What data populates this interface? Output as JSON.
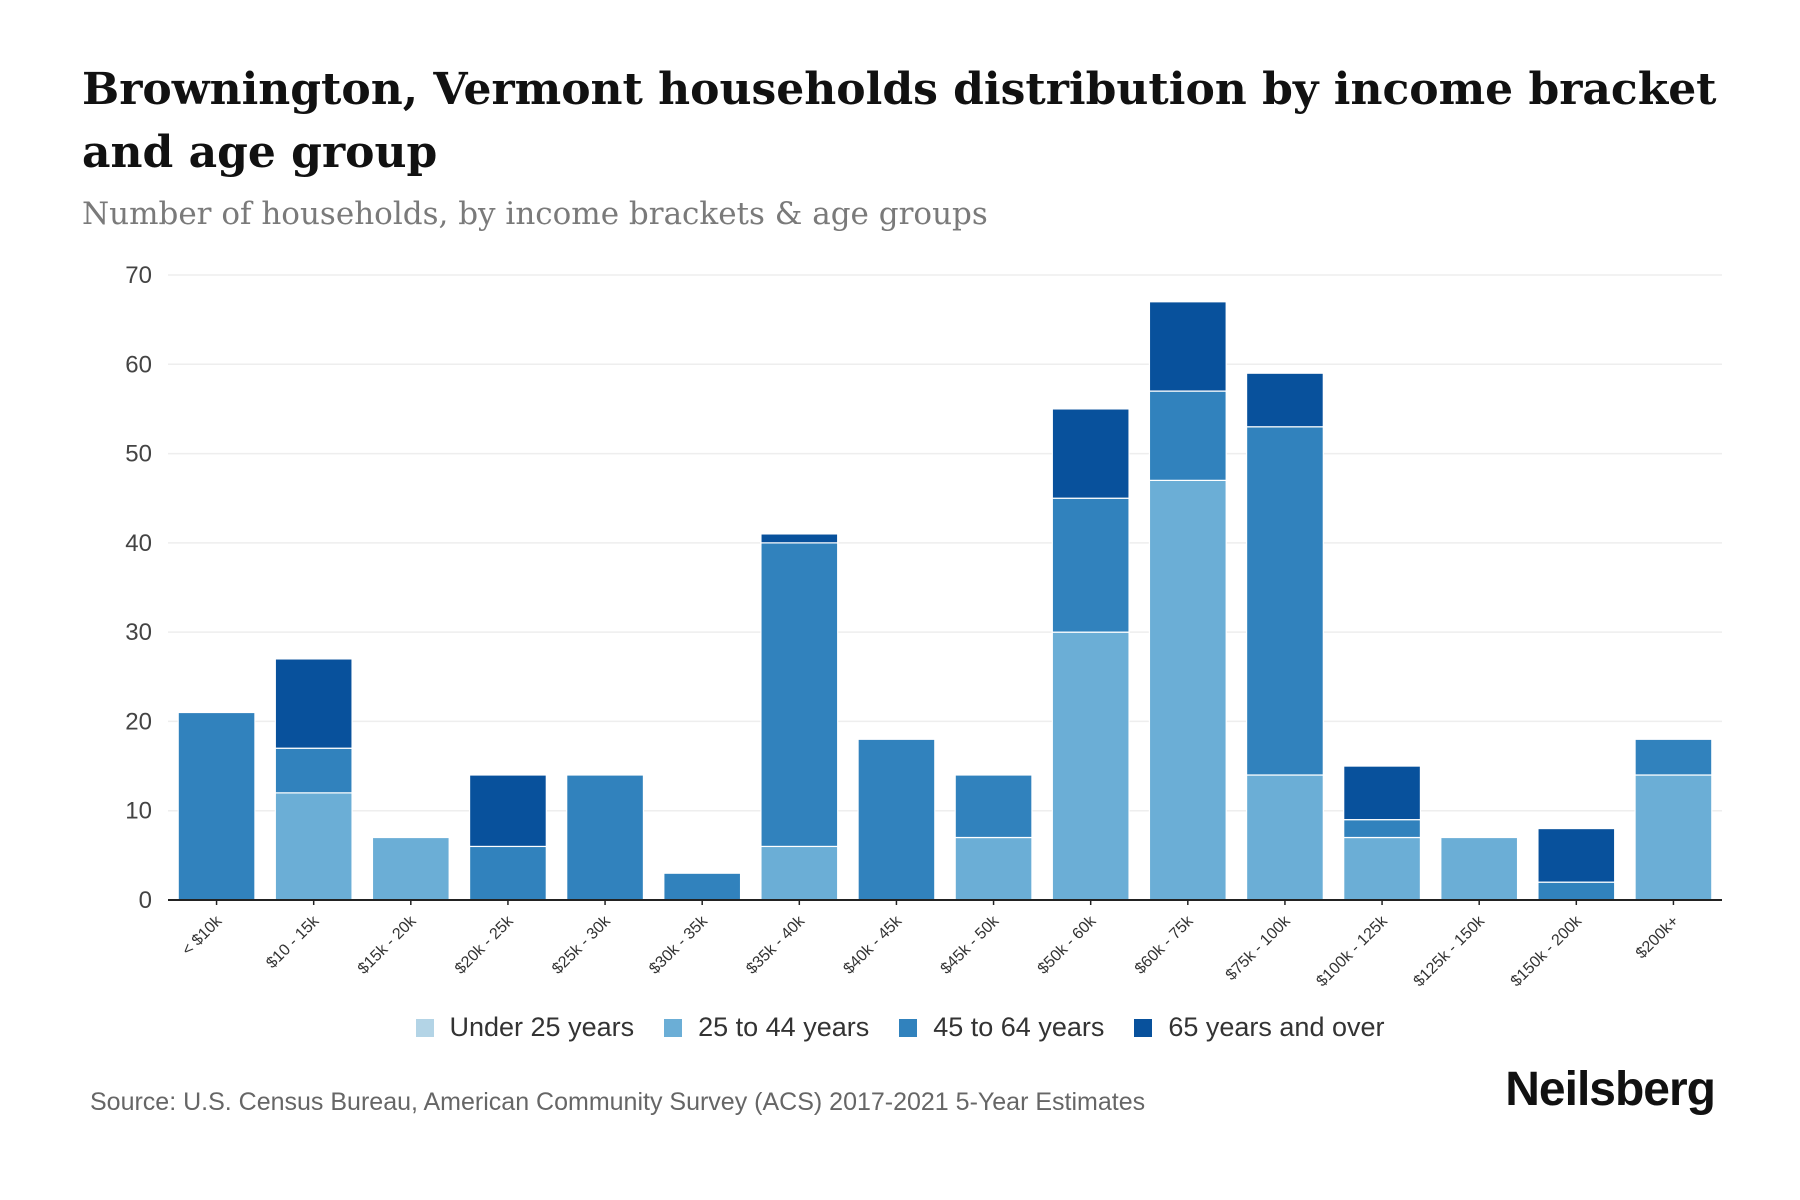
{
  "header": {
    "title": "Brownington, Vermont households distribution by income bracket and age group",
    "subtitle": "Number of households, by income brackets & age groups"
  },
  "footer": {
    "source": "Source: U.S. Census Bureau, American Community Survey (ACS) 2017-2021 5-Year Estimates",
    "brand": "Neilsberg"
  },
  "chart_data": {
    "type": "bar",
    "stacked": true,
    "title": "Brownington, Vermont households distribution by income bracket and age group",
    "subtitle": "Number of households, by income brackets & age groups",
    "xlabel": "",
    "ylabel": "",
    "ylim": [
      0,
      70
    ],
    "yticks": [
      0,
      10,
      20,
      30,
      40,
      50,
      60,
      70
    ],
    "grid": true,
    "legend_position": "bottom-center",
    "categories": [
      "< $10k",
      "$10 - 15k",
      "$15k - 20k",
      "$20k - 25k",
      "$25k - 30k",
      "$30k - 35k",
      "$35k - 40k",
      "$40k - 45k",
      "$45k - 50k",
      "$50k - 60k",
      "$60k - 75k",
      "$75k - 100k",
      "$100k - 125k",
      "$125k - 150k",
      "$150k - 200k",
      "$200k+"
    ],
    "series": [
      {
        "name": "Under 25 years",
        "color": "#b3d4e6",
        "values": [
          0,
          0,
          0,
          0,
          0,
          0,
          0,
          0,
          0,
          0,
          0,
          0,
          0,
          0,
          0,
          0
        ]
      },
      {
        "name": "25 to 44 years",
        "color": "#6baed6",
        "values": [
          0,
          12,
          7,
          0,
          0,
          0,
          6,
          0,
          7,
          30,
          47,
          14,
          7,
          7,
          0,
          14
        ]
      },
      {
        "name": "45 to 64 years",
        "color": "#3182bd",
        "values": [
          21,
          5,
          0,
          6,
          14,
          3,
          34,
          18,
          7,
          15,
          10,
          39,
          2,
          0,
          2,
          4
        ]
      },
      {
        "name": "65 years and over",
        "color": "#08519c",
        "values": [
          0,
          10,
          0,
          8,
          0,
          0,
          1,
          0,
          0,
          10,
          10,
          6,
          6,
          0,
          6,
          0
        ]
      }
    ]
  }
}
